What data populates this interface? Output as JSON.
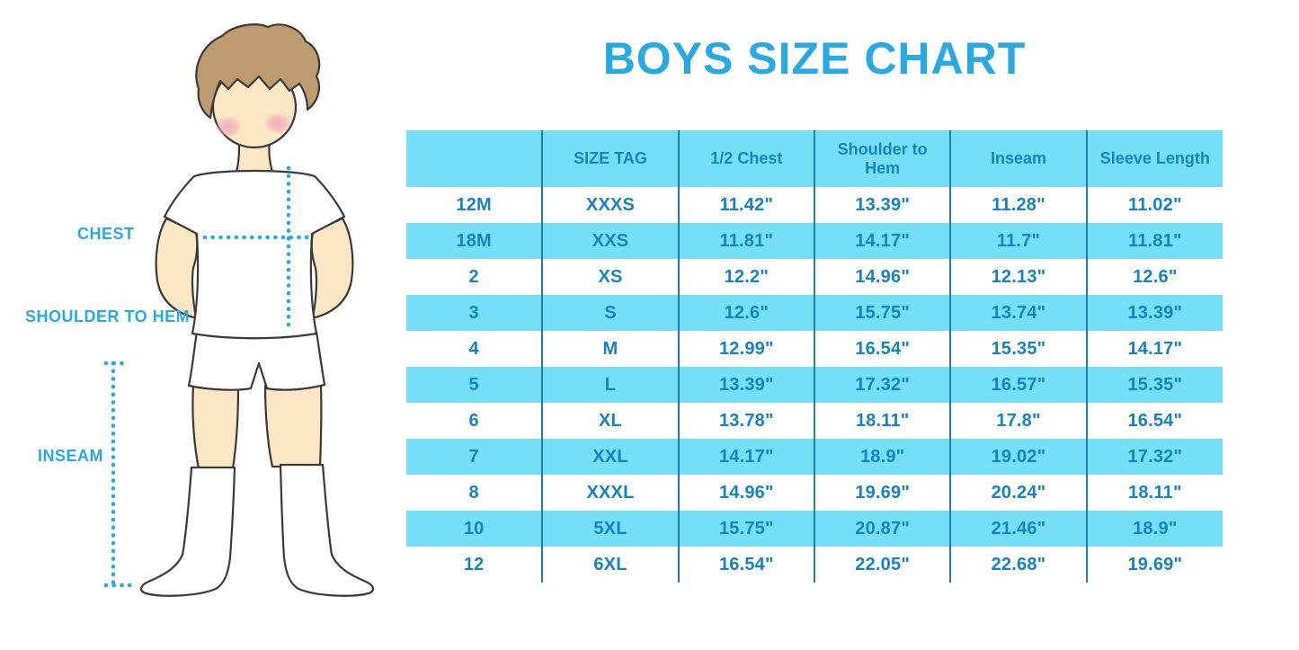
{
  "title": "BOYS SIZE CHART",
  "figure": {
    "labels": {
      "chest": "CHEST",
      "shoulder_to_hem": "SHOULDER TO HEM",
      "inseam": "INSEAM"
    }
  },
  "colors": {
    "accent": "#29A9E1",
    "row_fill": "#76DFF8",
    "table_text": "#1583C2",
    "divider": "#1F7FAC",
    "outline": "#3A3A3A",
    "skin": "#FBE7C3",
    "hair": "#BD9B6F",
    "blush": "#F2A8BC"
  },
  "chart_data": {
    "type": "table",
    "title": "BOYS SIZE CHART",
    "columns": [
      "",
      "SIZE TAG",
      "1/2 Chest",
      "Shoulder to Hem",
      "Inseam",
      "Sleeve Length"
    ],
    "rows": [
      [
        "12M",
        "XXXS",
        "11.42\"",
        "13.39\"",
        "11.28\"",
        "11.02\""
      ],
      [
        "18M",
        "XXS",
        "11.81\"",
        "14.17\"",
        "11.7\"",
        "11.81\""
      ],
      [
        "2",
        "XS",
        "12.2\"",
        "14.96\"",
        "12.13\"",
        "12.6\""
      ],
      [
        "3",
        "S",
        "12.6\"",
        "15.75\"",
        "13.74\"",
        "13.39\""
      ],
      [
        "4",
        "M",
        "12.99\"",
        "16.54\"",
        "15.35\"",
        "14.17\""
      ],
      [
        "5",
        "L",
        "13.39\"",
        "17.32\"",
        "16.57\"",
        "15.35\""
      ],
      [
        "6",
        "XL",
        "13.78\"",
        "18.11\"",
        "17.8\"",
        "16.54\""
      ],
      [
        "7",
        "XXL",
        "14.17\"",
        "18.9\"",
        "19.02\"",
        "17.32\""
      ],
      [
        "8",
        "XXXL",
        "14.96\"",
        "19.69\"",
        "20.24\"",
        "18.11\""
      ],
      [
        "10",
        "5XL",
        "15.75\"",
        "20.87\"",
        "21.46\"",
        "18.9\""
      ],
      [
        "12",
        "6XL",
        "16.54\"",
        "22.05\"",
        "22.68\"",
        "19.69\""
      ]
    ]
  }
}
